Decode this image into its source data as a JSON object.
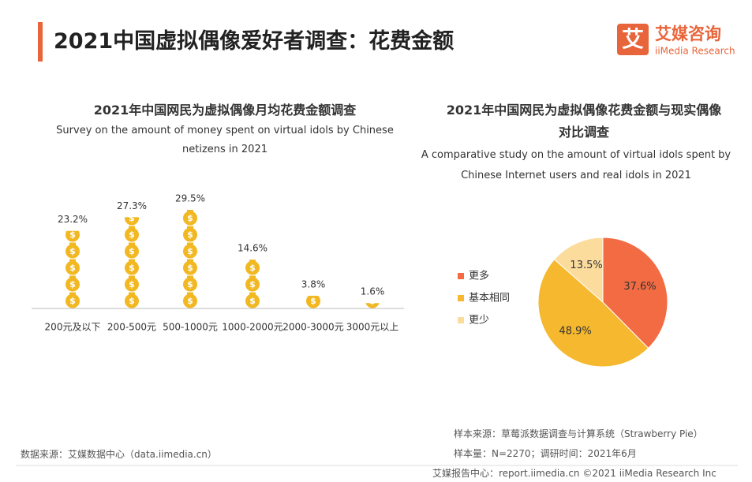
{
  "header": {
    "title": "2021中国虚拟偶像爱好者调查：花费金额",
    "logo_mark": "艾",
    "logo_cn": "艾媒咨询",
    "logo_en": "iiMedia Research"
  },
  "chart_data": [
    {
      "type": "bar",
      "title": "2021年中国网民为虚拟偶像月均花费金额调查",
      "subtitle": "Survey on the amount of money spent on virtual idols by Chinese netizens in 2021",
      "categories": [
        "200元及以下",
        "200-500元",
        "500-1000元",
        "1000-2000元",
        "2000-3000元",
        "3000元以上"
      ],
      "values": [
        23.2,
        27.3,
        29.5,
        14.6,
        3.8,
        1.6
      ],
      "value_labels": [
        "23.2%",
        "27.3%",
        "29.5%",
        "14.6%",
        "3.8%",
        "1.6%"
      ],
      "color": "#f2b822"
    },
    {
      "type": "pie",
      "title": "2021年中国网民为虚拟偶像花费金额与现实偶像对比调查",
      "subtitle": "A comparative study on the amount of virtual idols spent by Chinese Internet users and real idols in 2021",
      "categories": [
        "更多",
        "基本相同",
        "更少"
      ],
      "values": [
        37.6,
        48.9,
        13.5
      ],
      "value_labels": [
        "37.6%",
        "48.9%",
        "13.5%"
      ],
      "colors": [
        "#f26b43",
        "#f5b82e",
        "#fbdc9d"
      ]
    }
  ],
  "footer": {
    "source": "数据来源：艾媒数据中心（data.iimedia.cn）",
    "sample_source": "样本来源：草莓派数据调查与计算系统（Strawberry Pie）",
    "sample_size": "样本量：N=2270；调研时间：2021年6月",
    "credit": "艾媒报告中心：report.iimedia.cn ©2021 iiMedia Research Inc"
  }
}
